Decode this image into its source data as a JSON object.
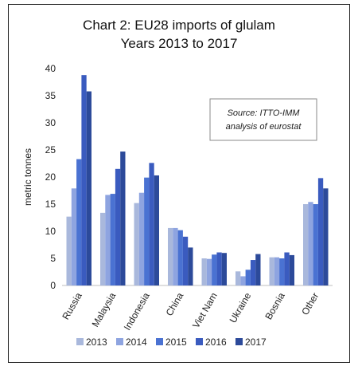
{
  "chart_data": {
    "type": "bar",
    "title_line1": "Chart 2: EU28 imports of glulam",
    "title_line2": "Years 2013 to 2017",
    "ylabel": "metric tonnes",
    "ylim": [
      0,
      40
    ],
    "yticks": [
      0,
      5,
      10,
      15,
      20,
      25,
      30,
      35,
      40
    ],
    "grid": false,
    "legend_position": "bottom",
    "source_line1": "Source: ITTO-IMM",
    "source_line2": "analysis of eurostat",
    "categories": [
      "Russia",
      "Malaysia",
      "Indonesia",
      "China",
      "Viet Nam",
      "Ukraine",
      "Bosnia",
      "Other"
    ],
    "series": [
      {
        "name": "2013",
        "color": "#a9b8dc",
        "values": [
          12.7,
          13.4,
          15.2,
          10.6,
          5.0,
          2.6,
          5.2,
          15.0
        ]
      },
      {
        "name": "2014",
        "color": "#8ea4e0",
        "values": [
          17.9,
          16.7,
          17.1,
          10.6,
          4.9,
          1.7,
          5.2,
          15.4
        ]
      },
      {
        "name": "2015",
        "color": "#4a72d2",
        "values": [
          23.3,
          16.9,
          19.9,
          10.2,
          5.7,
          2.9,
          5.0,
          15.0
        ]
      },
      {
        "name": "2016",
        "color": "#3a5bbf",
        "values": [
          38.8,
          21.5,
          22.6,
          9.0,
          6.1,
          4.7,
          6.1,
          19.8
        ]
      },
      {
        "name": "2017",
        "color": "#2c4a9a",
        "values": [
          35.8,
          24.7,
          20.3,
          7.0,
          6.0,
          5.8,
          5.6,
          17.9
        ]
      }
    ]
  }
}
